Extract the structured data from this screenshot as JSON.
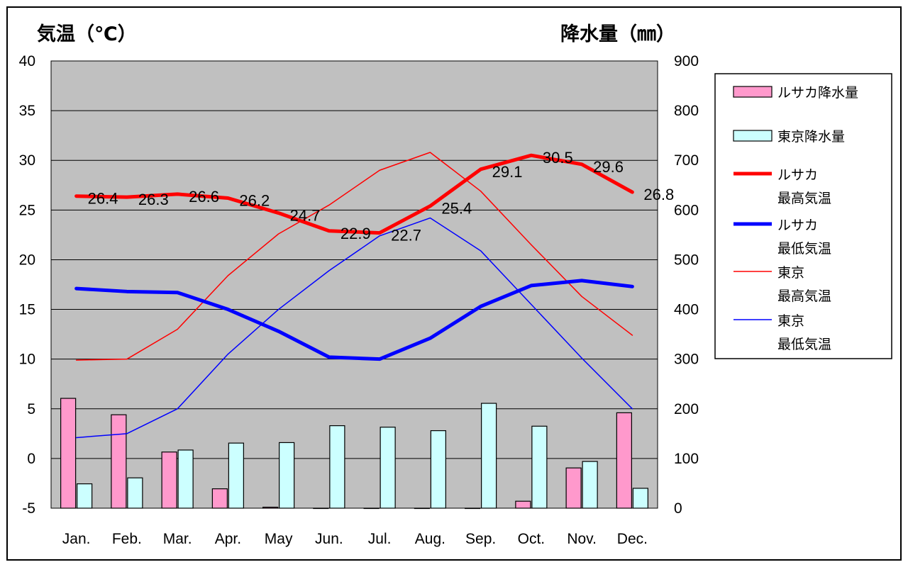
{
  "chart_data": {
    "type": "bar",
    "categories": [
      "Jan.",
      "Feb.",
      "Mar.",
      "Apr.",
      "May",
      "Jun.",
      "Jul.",
      "Aug.",
      "Sep.",
      "Oct.",
      "Nov.",
      "Dec."
    ],
    "y_left_label": "気温（℃）",
    "y_right_label": "降水量（㎜）",
    "y_left_lim": [
      -5,
      40
    ],
    "y_left_ticks": [
      "40",
      "35",
      "30",
      "25",
      "20",
      "15",
      "10",
      "5",
      "0",
      "-5"
    ],
    "y_right_lim": [
      0,
      900
    ],
    "y_right_ticks": [
      "900",
      "800",
      "700",
      "600",
      "500",
      "400",
      "300",
      "200",
      "100",
      "0"
    ],
    "grid": true,
    "plot_background": "#c0c0c0",
    "legend_position": "right",
    "series": [
      {
        "name": "ルサカ降水量",
        "kind": "bar",
        "axis": "right",
        "color": "#ff99cc",
        "values": [
          221,
          188,
          113,
          39,
          2,
          0,
          0,
          0,
          0,
          14,
          81,
          192
        ]
      },
      {
        "name": "東京降水量",
        "kind": "bar",
        "axis": "right",
        "color": "#ccffff",
        "values": [
          49,
          61,
          117,
          131,
          132,
          166,
          163,
          156,
          211,
          165,
          94,
          40
        ]
      },
      {
        "name": "ルサカ最高気温",
        "kind": "line",
        "axis": "left",
        "color": "#ff0000",
        "width": 5,
        "values": [
          26.4,
          26.3,
          26.6,
          26.2,
          24.7,
          22.9,
          22.7,
          25.4,
          29.1,
          30.5,
          29.6,
          26.8
        ],
        "labels": [
          "26.4",
          "26.3",
          "26.6",
          "26.2",
          "24.7",
          "22.9",
          "22.7",
          "25.4",
          "29.1",
          "30.5",
          "29.6",
          "26.8"
        ]
      },
      {
        "name": "ルサカ最低気温",
        "kind": "line",
        "axis": "left",
        "color": "#0000ff",
        "width": 5,
        "values": [
          17.1,
          16.8,
          16.7,
          15.0,
          12.8,
          10.2,
          10.0,
          12.1,
          15.3,
          17.4,
          17.9,
          17.3
        ]
      },
      {
        "name": "東京最高気温",
        "kind": "line",
        "axis": "left",
        "color": "#ff0000",
        "width": 1.5,
        "values": [
          9.9,
          10.0,
          13.0,
          18.4,
          22.6,
          25.5,
          29.0,
          30.8,
          26.9,
          21.5,
          16.3,
          12.4
        ]
      },
      {
        "name": "東京最低気温",
        "kind": "line",
        "axis": "left",
        "color": "#0000ff",
        "width": 1.5,
        "values": [
          2.1,
          2.5,
          5.0,
          10.5,
          15.0,
          18.9,
          22.4,
          24.2,
          20.9,
          15.5,
          10.1,
          5.0
        ]
      }
    ],
    "legend": [
      {
        "series": 0,
        "lines": [
          "ルサカ降水量"
        ]
      },
      {
        "series": 1,
        "lines": [
          "東京降水量"
        ]
      },
      {
        "series": 2,
        "lines": [
          "ルサカ",
          "最高気温"
        ]
      },
      {
        "series": 3,
        "lines": [
          "ルサカ",
          "最低気温"
        ]
      },
      {
        "series": 4,
        "lines": [
          "東京",
          "最高気温"
        ]
      },
      {
        "series": 5,
        "lines": [
          "東京",
          "最低気温"
        ]
      }
    ]
  }
}
